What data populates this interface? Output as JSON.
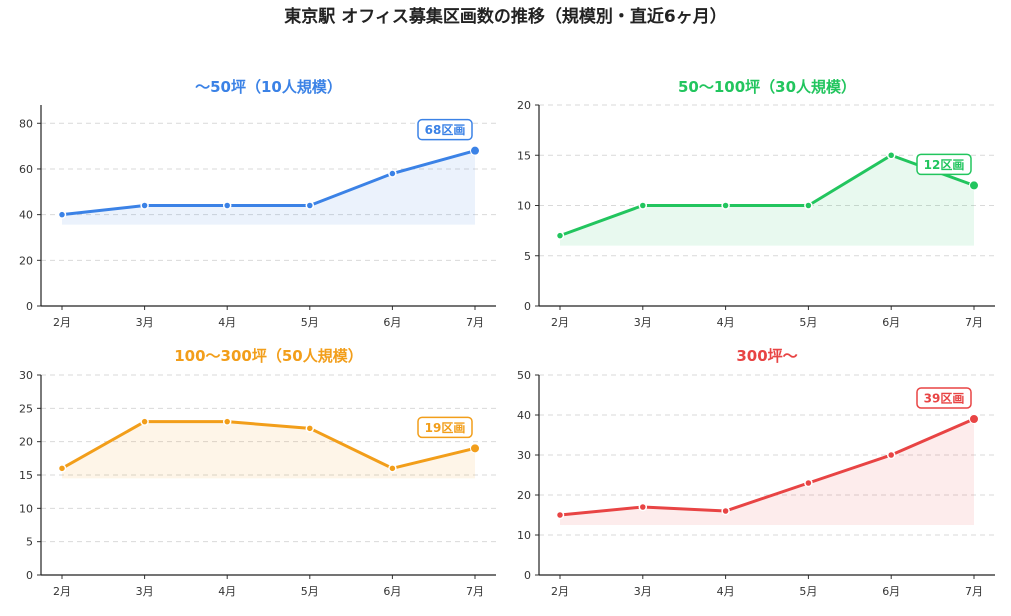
{
  "title": "東京駅 オフィス募集区画数の推移（規模別・直近6ヶ月）",
  "chart_data": [
    {
      "type": "line",
      "title": "〜50坪（10人規模）",
      "color": "#3b82e6",
      "categories": [
        "2月",
        "3月",
        "4月",
        "5月",
        "6月",
        "7月"
      ],
      "series": [
        {
          "values": [
            40,
            44,
            44,
            44,
            58,
            68
          ]
        }
      ],
      "ylim": [
        0,
        88
      ],
      "yticks": [
        0,
        20,
        40,
        60,
        80
      ],
      "annotation": "68区画",
      "grid": true
    },
    {
      "type": "line",
      "title": "50〜100坪（30人規模）",
      "color": "#22c55e",
      "categories": [
        "2月",
        "3月",
        "4月",
        "5月",
        "6月",
        "7月"
      ],
      "series": [
        {
          "values": [
            7,
            10,
            10,
            10,
            15,
            12
          ]
        }
      ],
      "ylim": [
        0,
        20
      ],
      "yticks": [
        0,
        5,
        10,
        15,
        20
      ],
      "annotation": "12区画",
      "grid": true
    },
    {
      "type": "line",
      "title": "100〜300坪（50人規模）",
      "color": "#f29e1a",
      "categories": [
        "2月",
        "3月",
        "4月",
        "5月",
        "6月",
        "7月"
      ],
      "series": [
        {
          "values": [
            16,
            23,
            23,
            22,
            16,
            19
          ]
        }
      ],
      "ylim": [
        0,
        30
      ],
      "yticks": [
        0,
        5,
        10,
        15,
        20,
        25,
        30
      ],
      "annotation": "19区画",
      "grid": true
    },
    {
      "type": "line",
      "title": "300坪〜",
      "color": "#e84444",
      "categories": [
        "2月",
        "3月",
        "4月",
        "5月",
        "6月",
        "7月"
      ],
      "series": [
        {
          "values": [
            15,
            17,
            16,
            23,
            30,
            39
          ]
        }
      ],
      "ylim": [
        0,
        50
      ],
      "yticks": [
        0,
        10,
        20,
        30,
        40,
        50
      ],
      "annotation": "39区画",
      "grid": true
    }
  ]
}
